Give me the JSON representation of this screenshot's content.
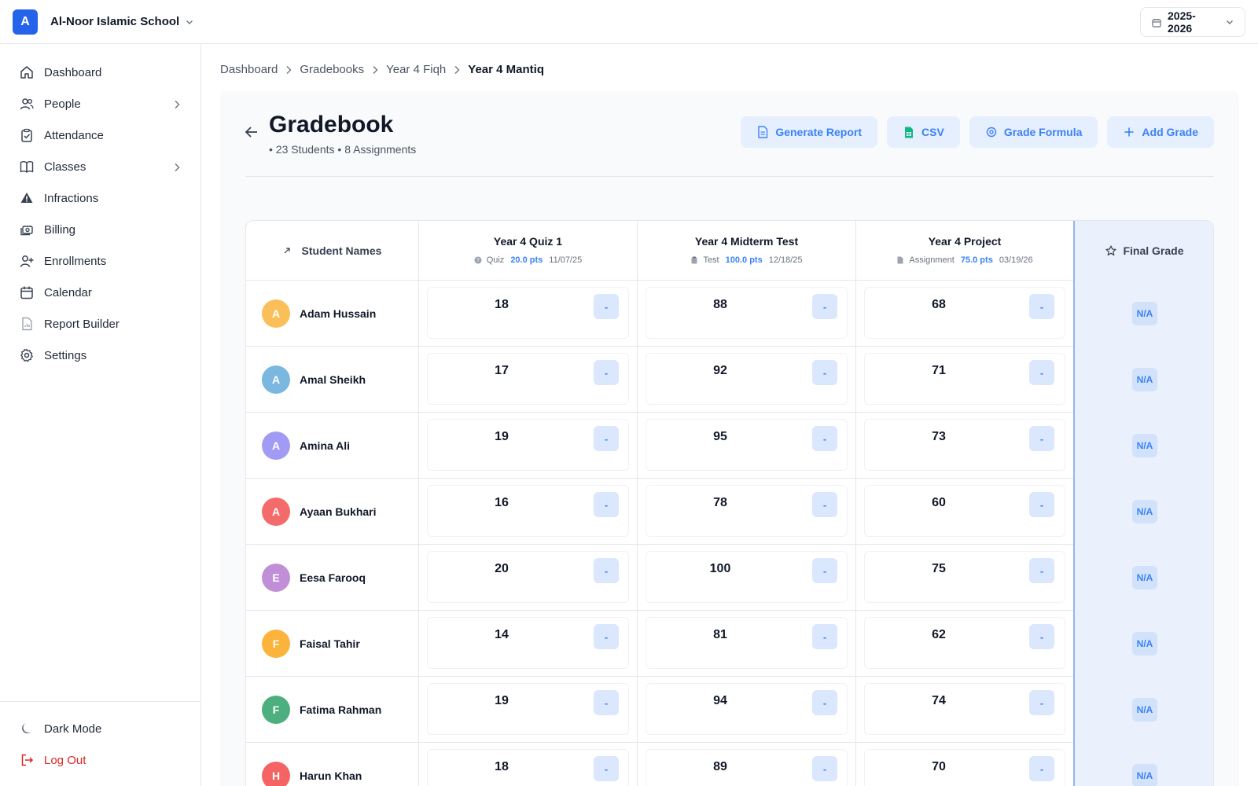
{
  "header": {
    "school_initial": "A",
    "school_name": "Al-Noor Islamic School",
    "school_year": "2025-2026"
  },
  "sidebar": {
    "items": [
      {
        "label": "Dashboard",
        "icon": "home-icon"
      },
      {
        "label": "People",
        "icon": "people-icon"
      },
      {
        "label": "Attendance",
        "icon": "clipboard-check-icon"
      },
      {
        "label": "Classes",
        "icon": "book-icon"
      },
      {
        "label": "Infractions",
        "icon": "warning-icon"
      },
      {
        "label": "Billing",
        "icon": "money-icon"
      },
      {
        "label": "Enrollments",
        "icon": "user-plus-icon"
      },
      {
        "label": "Calendar",
        "icon": "calendar-icon"
      },
      {
        "label": "Report Builder",
        "icon": "report-icon"
      },
      {
        "label": "Settings",
        "icon": "gear-icon"
      }
    ],
    "dark_mode_label": "Dark Mode",
    "logout_label": "Log Out"
  },
  "breadcrumb": [
    "Dashboard",
    "Gradebooks",
    "Year 4 Fiqh",
    "Year 4 Mantiq"
  ],
  "page": {
    "title": "Gradebook",
    "subtitle": "• 23 Students • 8 Assignments"
  },
  "actions": {
    "generate_report": "Generate Report",
    "csv": "CSV",
    "grade_formula": "Grade Formula",
    "add_grade": "Add Grade"
  },
  "colors": {
    "accent": "#3b82f6",
    "brand": "#2563eb",
    "logout": "#dc2626"
  },
  "table": {
    "students_header": "Student Names",
    "final_header": "Final Grade",
    "assignments": [
      {
        "name": "Year 4 Quiz 1",
        "type": "Quiz",
        "points": "20.0 pts",
        "date": "11/07/25"
      },
      {
        "name": "Year 4 Midterm Test",
        "type": "Test",
        "points": "100.0 pts",
        "date": "12/18/25"
      },
      {
        "name": "Year 4 Project",
        "type": "Assignment",
        "points": "75.0 pts",
        "date": "03/19/26"
      }
    ],
    "grade_placeholder": "-",
    "final_placeholder": "N/A",
    "students": [
      {
        "initial": "A",
        "name": "Adam Hussain",
        "color": "#fbbf5a",
        "scores": [
          "18",
          "88",
          "68"
        ]
      },
      {
        "initial": "A",
        "name": "Amal Sheikh",
        "color": "#7ab8e0",
        "scores": [
          "17",
          "92",
          "71"
        ]
      },
      {
        "initial": "A",
        "name": "Amina Ali",
        "color": "#a29bf5",
        "scores": [
          "19",
          "95",
          "73"
        ]
      },
      {
        "initial": "A",
        "name": "Ayaan Bukhari",
        "color": "#f46b6b",
        "scores": [
          "16",
          "78",
          "60"
        ]
      },
      {
        "initial": "E",
        "name": "Eesa Farooq",
        "color": "#c18fd8",
        "scores": [
          "20",
          "100",
          "75"
        ]
      },
      {
        "initial": "F",
        "name": "Faisal Tahir",
        "color": "#fbb33c",
        "scores": [
          "14",
          "81",
          "62"
        ]
      },
      {
        "initial": "F",
        "name": "Fatima Rahman",
        "color": "#4caf7d",
        "scores": [
          "19",
          "94",
          "74"
        ]
      },
      {
        "initial": "H",
        "name": "Harun Khan",
        "color": "#f46464",
        "scores": [
          "18",
          "89",
          "70"
        ]
      }
    ]
  }
}
